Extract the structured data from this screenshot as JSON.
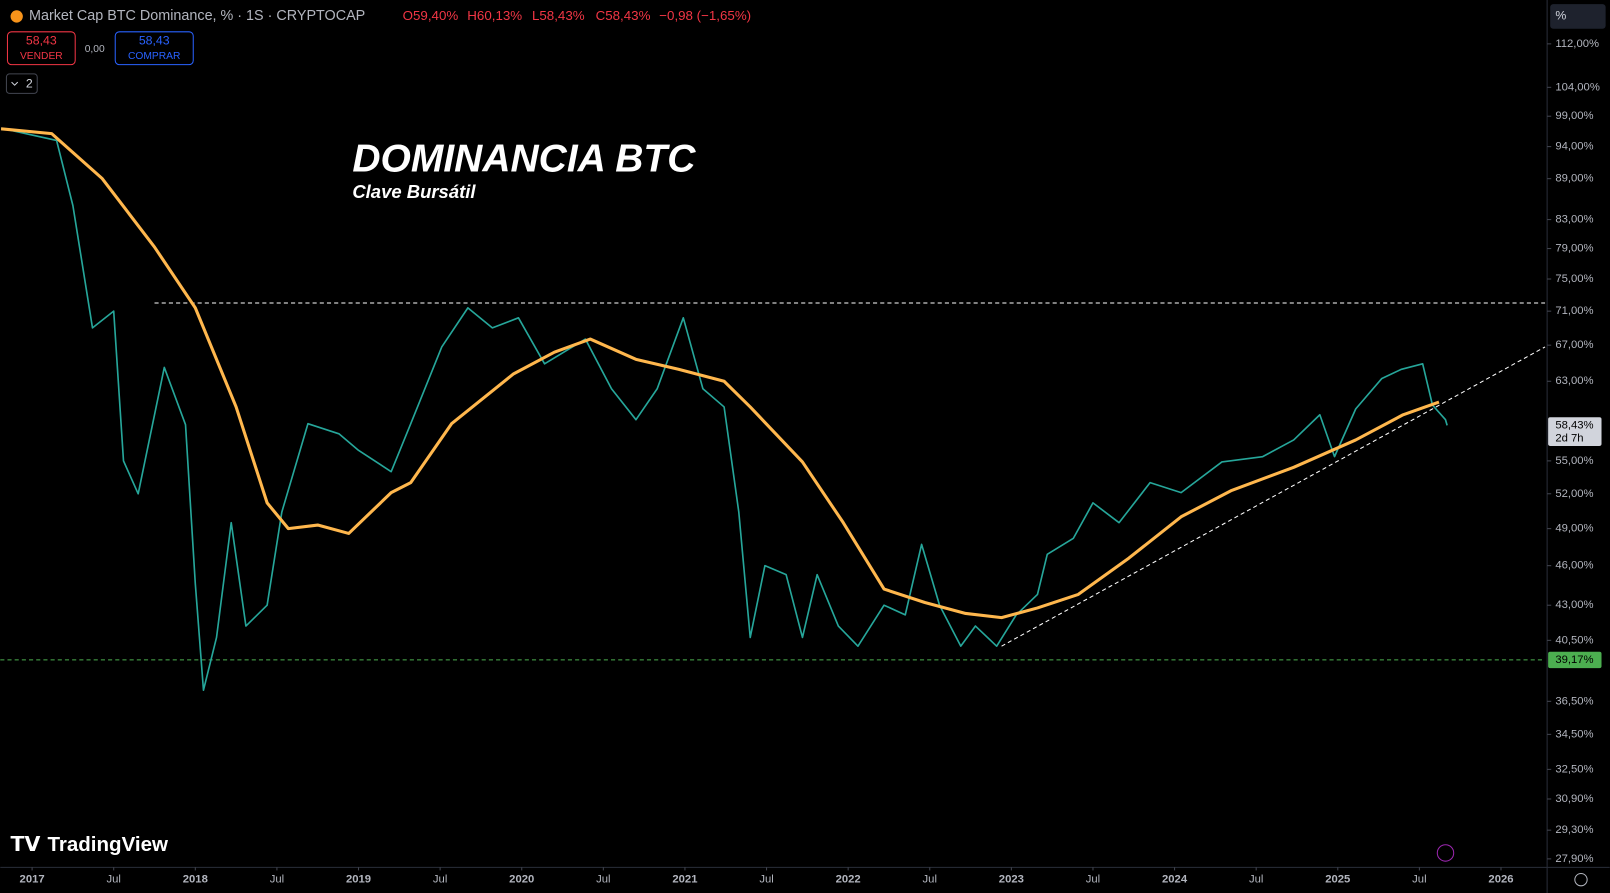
{
  "header": {
    "symbol": "Market Cap BTC Dominance, % · 1S · CRYPTOCAP",
    "open": "O59,40%",
    "high": "H60,13%",
    "low": "L58,43%",
    "close": "C58,43%",
    "change": "−0,98 (−1,65%)",
    "sell_price": "58,43",
    "sell": "VENDER",
    "spread": "0,00",
    "buy_price": "58,43",
    "buy": "COMPRAR",
    "indicators": "2",
    "axis_unit": "%",
    "brand": "TradingView"
  },
  "chart_data": {
    "type": "line",
    "title": "DOMINANCIA BTC",
    "subtitle": "Clave Bursátil",
    "log_scale": true,
    "grid": false,
    "xlim": [
      2016.805,
      2026.27
    ],
    "ylim": [
      27.5,
      120.7
    ],
    "xticks": [
      {
        "value": 2017,
        "label": "2017"
      },
      {
        "value": 2017.5,
        "label": "Jul"
      },
      {
        "value": 2018,
        "label": "2018"
      },
      {
        "value": 2018.5,
        "label": "Jul"
      },
      {
        "value": 2019,
        "label": "2019"
      },
      {
        "value": 2019.5,
        "label": "Jul"
      },
      {
        "value": 2020,
        "label": "2020"
      },
      {
        "value": 2020.5,
        "label": "Jul"
      },
      {
        "value": 2021,
        "label": "2021"
      },
      {
        "value": 2021.5,
        "label": "Jul"
      },
      {
        "value": 2022,
        "label": "2022"
      },
      {
        "value": 2022.5,
        "label": "Jul"
      },
      {
        "value": 2023,
        "label": "2023"
      },
      {
        "value": 2023.5,
        "label": "Jul"
      },
      {
        "value": 2024,
        "label": "2024"
      },
      {
        "value": 2024.5,
        "label": "Jul"
      },
      {
        "value": 2025,
        "label": "2025"
      },
      {
        "value": 2025.5,
        "label": "Jul"
      },
      {
        "value": 2026,
        "label": "2026"
      }
    ],
    "yticks": [
      {
        "value": 112,
        "label": "112,00%"
      },
      {
        "value": 104,
        "label": "104,00%"
      },
      {
        "value": 99,
        "label": "99,00%"
      },
      {
        "value": 94,
        "label": "94,00%"
      },
      {
        "value": 89,
        "label": "89,00%"
      },
      {
        "value": 83,
        "label": "83,00%"
      },
      {
        "value": 79,
        "label": "79,00%"
      },
      {
        "value": 75,
        "label": "75,00%"
      },
      {
        "value": 71,
        "label": "71,00%"
      },
      {
        "value": 67,
        "label": "67,00%"
      },
      {
        "value": 63,
        "label": "63,00%"
      },
      {
        "value": 55,
        "label": "55,00%"
      },
      {
        "value": 52,
        "label": "52,00%"
      },
      {
        "value": 49,
        "label": "49,00%"
      },
      {
        "value": 46,
        "label": "46,00%"
      },
      {
        "value": 43,
        "label": "43,00%"
      },
      {
        "value": 40.5,
        "label": "40,50%"
      },
      {
        "value": 36.5,
        "label": "36,50%"
      },
      {
        "value": 34.5,
        "label": "34,50%"
      },
      {
        "value": 32.5,
        "label": "32,50%"
      },
      {
        "value": 30.9,
        "label": "30,90%"
      },
      {
        "value": 29.3,
        "label": "29,30%"
      },
      {
        "value": 27.9,
        "label": "27,90%"
      }
    ],
    "series": [
      {
        "name": "BTC Dominance",
        "color": "#26a69a",
        "x": [
          2016.81,
          2017.15,
          2017.25,
          2017.37,
          2017.5,
          2017.56,
          2017.65,
          2017.81,
          2017.94,
          2018.0,
          2018.05,
          2018.13,
          2018.22,
          2018.31,
          2018.44,
          2018.53,
          2018.69,
          2018.88,
          2019.0,
          2019.2,
          2019.32,
          2019.51,
          2019.67,
          2019.82,
          2019.98,
          2020.14,
          2020.39,
          2020.55,
          2020.7,
          2020.83,
          2020.99,
          2021.11,
          2021.24,
          2021.33,
          2021.4,
          2021.49,
          2021.62,
          2021.72,
          2021.81,
          2021.94,
          2022.06,
          2022.22,
          2022.35,
          2022.45,
          2022.56,
          2022.69,
          2022.78,
          2022.91,
          2023.03,
          2023.16,
          2023.22,
          2023.38,
          2023.5,
          2023.66,
          2023.85,
          2024.04,
          2024.29,
          2024.54,
          2024.73,
          2024.89,
          2024.98,
          2025.11,
          2025.27,
          2025.39,
          2025.52,
          2025.58,
          2025.66,
          2025.67
        ],
        "values": [
          97,
          95,
          85,
          69,
          71,
          55,
          52,
          64.5,
          58.5,
          44.6,
          37.2,
          40.7,
          49.5,
          41.5,
          43,
          50.4,
          58.6,
          57.6,
          56,
          54,
          58.6,
          66.8,
          71.4,
          69,
          70.2,
          64.9,
          67.7,
          62.2,
          59,
          62.2,
          70.2,
          62.2,
          60.3,
          50.4,
          40.7,
          46,
          45.3,
          40.7,
          45.3,
          41.5,
          40.1,
          43,
          42.3,
          47.7,
          43,
          40.1,
          41.5,
          40.1,
          42.3,
          43.8,
          46.9,
          48.2,
          51.2,
          49.5,
          53,
          52.1,
          54.9,
          55.4,
          57,
          59.5,
          55.4,
          60.1,
          63.3,
          64.3,
          64.9,
          60.5,
          59,
          58.43
        ]
      },
      {
        "name": "Moving Average",
        "color": "#ffb74d",
        "x": [
          2016.81,
          2017.12,
          2017.43,
          2017.75,
          2018.0,
          2018.25,
          2018.44,
          2018.57,
          2018.75,
          2018.94,
          2019.2,
          2019.32,
          2019.57,
          2019.95,
          2020.2,
          2020.42,
          2020.7,
          2020.96,
          2021.24,
          2021.4,
          2021.72,
          2021.97,
          2022.22,
          2022.47,
          2022.72,
          2022.94,
          2023.16,
          2023.41,
          2023.72,
          2024.04,
          2024.35,
          2024.73,
          2025.11,
          2025.4,
          2025.62
        ],
        "values": [
          96.9,
          96.1,
          89,
          79.2,
          71.4,
          60.3,
          51.2,
          49,
          49.3,
          48.6,
          52.1,
          53,
          58.6,
          63.8,
          66.2,
          67.7,
          65.4,
          64.3,
          63,
          60.3,
          54.9,
          49.5,
          44.2,
          43.2,
          42.4,
          42.1,
          42.8,
          43.8,
          46.6,
          50,
          52.3,
          54.4,
          57,
          59.5,
          60.8
        ]
      }
    ],
    "hlines": [
      {
        "value": 72,
        "x": [
          2017.75,
          2026.27
        ],
        "color": "#ffffff"
      },
      {
        "value": 39.17,
        "x": [
          2016.805,
          2026.27
        ],
        "color": "#4caf50"
      }
    ],
    "trendline": {
      "x": [
        2022.94,
        2026.27
      ],
      "y": [
        40.1,
        66.8
      ],
      "color": "#ffffff"
    },
    "price_labels": [
      {
        "value": 58.43,
        "label": "58,43%",
        "countdown": "2d 7h"
      },
      {
        "value": 39.17,
        "label": "39,17%"
      }
    ]
  }
}
